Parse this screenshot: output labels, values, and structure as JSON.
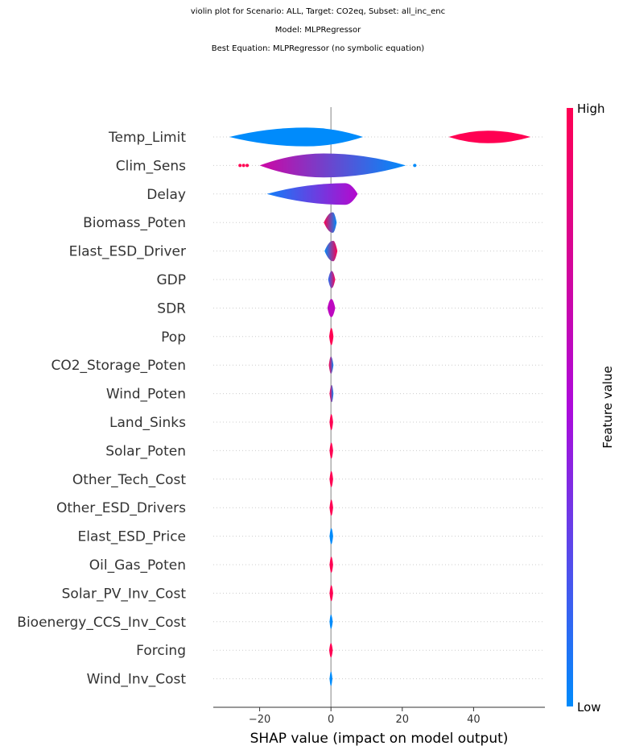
{
  "header": {
    "line1": "violin plot for Scenario: ALL, Target: CO2eq, Subset: all_inc_enc",
    "line2": "Model: MLPRegressor",
    "line3": "Best Equation: MLPRegressor (no symbolic equation)"
  },
  "chart_data": {
    "type": "violin",
    "xlabel": "SHAP value (impact on model output)",
    "xlim": [
      -33,
      60
    ],
    "xticks": [
      -20,
      0,
      20,
      40
    ],
    "xtick_labels": [
      "−20",
      "0",
      "20",
      "40"
    ],
    "colorbar": {
      "label": "Feature value",
      "high_label": "High",
      "low_label": "Low",
      "low_color": "#008bfb",
      "mid_color": "#ad0adb",
      "high_color": "#ff0052"
    },
    "features": [
      {
        "name": "Temp_Limit",
        "segments": [
          {
            "x0": -28.5,
            "x1": 9,
            "peak": -7,
            "w": 0.33,
            "c0": 0.0,
            "c1": 0.0
          },
          {
            "x0": 33,
            "x1": 56,
            "peak": 44,
            "w": 0.22,
            "c0": 1.0,
            "c1": 1.0
          }
        ]
      },
      {
        "name": "Clim_Sens",
        "segments": [
          {
            "x0": -20,
            "x1": 21,
            "peak": -2,
            "w": 0.42,
            "c0": 0.7,
            "c1": 0.0
          }
        ],
        "dots": [
          {
            "x": -24.5,
            "c": 1.0
          },
          {
            "x": -25.5,
            "c": 1.0
          },
          {
            "x": -23.5,
            "c": 1.0
          },
          {
            "x": 23.5,
            "c": 0.0
          }
        ]
      },
      {
        "name": "Delay",
        "segments": [
          {
            "x0": -18,
            "x1": 7.5,
            "peak": 4,
            "w": 0.38,
            "c0": 0.05,
            "c1": 0.55
          }
        ]
      },
      {
        "name": "Biomass_Poten",
        "segments": [
          {
            "x0": -2,
            "x1": 1.6,
            "peak": 0.5,
            "w": 0.36,
            "c0": 1.0,
            "c1": 0.0
          }
        ]
      },
      {
        "name": "Elast_ESD_Driver",
        "segments": [
          {
            "x0": -1.8,
            "x1": 1.8,
            "peak": 0.6,
            "w": 0.36,
            "c0": 0.0,
            "c1": 1.0
          }
        ]
      },
      {
        "name": "GDP",
        "segments": [
          {
            "x0": -0.8,
            "x1": 1.2,
            "peak": 0.2,
            "w": 0.3,
            "c0": 0.1,
            "c1": 1.0
          }
        ]
      },
      {
        "name": "SDR",
        "segments": [
          {
            "x0": -1.0,
            "x1": 1.2,
            "peak": 0.1,
            "w": 0.32,
            "c0": 0.6,
            "c1": 0.6
          }
        ]
      },
      {
        "name": "Pop",
        "segments": [
          {
            "x0": -0.5,
            "x1": 0.7,
            "peak": 0.1,
            "w": 0.3,
            "c0": 1.0,
            "c1": 1.0
          }
        ]
      },
      {
        "name": "CO2_Storage_Poten",
        "segments": [
          {
            "x0": -0.6,
            "x1": 0.7,
            "peak": 0.0,
            "w": 0.3,
            "c0": 1.0,
            "c1": 0.0
          }
        ]
      },
      {
        "name": "Wind_Poten",
        "segments": [
          {
            "x0": -0.4,
            "x1": 0.7,
            "peak": 0.2,
            "w": 0.3,
            "c0": 1.0,
            "c1": 0.0
          }
        ]
      },
      {
        "name": "Land_Sinks",
        "segments": [
          {
            "x0": -0.4,
            "x1": 0.6,
            "peak": 0.1,
            "w": 0.28,
            "c0": 1.0,
            "c1": 1.0
          }
        ]
      },
      {
        "name": "Solar_Poten",
        "segments": [
          {
            "x0": -0.4,
            "x1": 0.6,
            "peak": 0.1,
            "w": 0.28,
            "c0": 1.0,
            "c1": 1.0
          }
        ]
      },
      {
        "name": "Other_Tech_Cost",
        "segments": [
          {
            "x0": -0.4,
            "x1": 0.6,
            "peak": 0.1,
            "w": 0.28,
            "c0": 1.0,
            "c1": 1.0
          }
        ]
      },
      {
        "name": "Other_ESD_Drivers",
        "segments": [
          {
            "x0": -0.4,
            "x1": 0.6,
            "peak": 0.1,
            "w": 0.28,
            "c0": 1.0,
            "c1": 1.0
          }
        ]
      },
      {
        "name": "Elast_ESD_Price",
        "segments": [
          {
            "x0": -0.4,
            "x1": 0.6,
            "peak": 0.1,
            "w": 0.28,
            "c0": 0.0,
            "c1": 0.0
          }
        ]
      },
      {
        "name": "Oil_Gas_Poten",
        "segments": [
          {
            "x0": -0.4,
            "x1": 0.6,
            "peak": 0.1,
            "w": 0.28,
            "c0": 1.0,
            "c1": 1.0
          }
        ]
      },
      {
        "name": "Solar_PV_Inv_Cost",
        "segments": [
          {
            "x0": -0.4,
            "x1": 0.6,
            "peak": 0.1,
            "w": 0.28,
            "c0": 1.0,
            "c1": 1.0
          }
        ]
      },
      {
        "name": "Bioenergy_CCS_Inv_Cost",
        "segments": [
          {
            "x0": -0.4,
            "x1": 0.5,
            "peak": 0.0,
            "w": 0.25,
            "c0": 0.0,
            "c1": 0.0
          }
        ]
      },
      {
        "name": "Forcing",
        "segments": [
          {
            "x0": -0.5,
            "x1": 0.5,
            "peak": 0.0,
            "w": 0.25,
            "c0": 1.0,
            "c1": 1.0
          }
        ]
      },
      {
        "name": "Wind_Inv_Cost",
        "segments": [
          {
            "x0": -0.4,
            "x1": 0.4,
            "peak": 0.0,
            "w": 0.25,
            "c0": 0.0,
            "c1": 0.0
          }
        ]
      }
    ]
  }
}
